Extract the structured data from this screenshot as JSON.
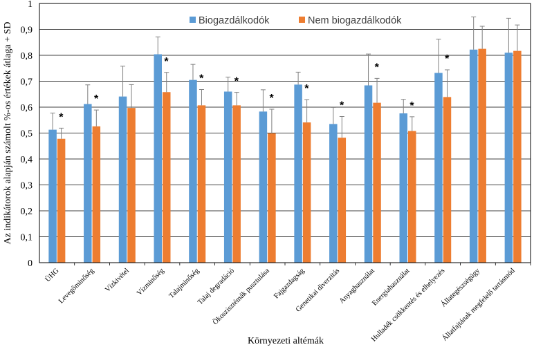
{
  "chart_data": {
    "type": "bar",
    "title": "",
    "xlabel": "Környezeti altémák",
    "ylabel": "Az indikátorok  alapján számolt %-os értékek átlaga + SD",
    "ylim": [
      0,
      1
    ],
    "yticks": [
      "0",
      "0,1",
      "0,2",
      "0,3",
      "0,4",
      "0,5",
      "0,6",
      "0,7",
      "0,8",
      "0,9",
      "1"
    ],
    "grid": true,
    "legend_position": "top",
    "colors": {
      "series_1": "#5b9bd5",
      "series_2": "#ed7d31",
      "frame": "#000000",
      "error_bar": "#808080"
    },
    "categories": [
      "ÜHG",
      "Levegőminőség",
      "Vízkivétel",
      "Vízminőség",
      "Talajminőség",
      "Talaj degradáció",
      "Ökoszisztémák pusztulása",
      "Fajgazdagság",
      "Genetikai diverzitás",
      "Anyaghasználat",
      "Energiahasználat",
      "Hulladék csökkentés és elhelyezés",
      "Állategészségügy",
      "Állatfajtának megfelelő tartásmód"
    ],
    "series": [
      {
        "name": "Biogazdálkodók",
        "values": [
          0.513,
          0.612,
          0.641,
          0.804,
          0.705,
          0.66,
          0.583,
          0.687,
          0.535,
          0.684,
          0.576,
          0.732,
          0.822,
          0.81
        ],
        "sd": [
          0.064,
          0.074,
          0.117,
          0.067,
          0.06,
          0.056,
          0.084,
          0.048,
          0.064,
          0.121,
          0.054,
          0.13,
          0.126,
          0.133
        ]
      },
      {
        "name": "Nem biogazdálkodók",
        "values": [
          0.478,
          0.526,
          0.597,
          0.658,
          0.607,
          0.607,
          0.499,
          0.541,
          0.482,
          0.617,
          0.508,
          0.639,
          0.825,
          0.817
        ],
        "sd": [
          0.041,
          0.063,
          0.09,
          0.076,
          0.061,
          0.05,
          0.093,
          0.088,
          0.082,
          0.094,
          0.055,
          0.105,
          0.087,
          0.1
        ]
      }
    ],
    "significance": [
      "*",
      "*",
      "",
      "*",
      "*",
      "*",
      "*",
      "*",
      "*",
      "*",
      "*",
      "*",
      "",
      ""
    ]
  }
}
